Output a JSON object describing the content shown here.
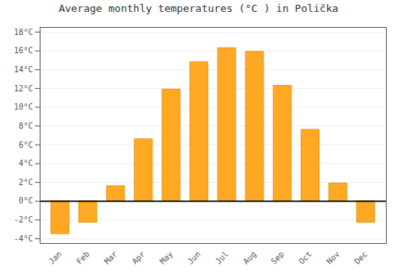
{
  "chart_data": {
    "type": "bar",
    "title": "Average monthly temperatures (°C ) in Polička",
    "categories": [
      "Jan",
      "Feb",
      "Mar",
      "Apr",
      "May",
      "Jun",
      "Jul",
      "Aug",
      "Sep",
      "Oct",
      "Nov",
      "Dec"
    ],
    "values": [
      -3.5,
      -2.3,
      1.6,
      6.6,
      11.9,
      14.8,
      16.3,
      15.9,
      12.3,
      7.6,
      1.9,
      -2.3
    ],
    "color": "#FFA824",
    "ylim": [
      -4.5,
      18.5
    ],
    "yticks": [
      {
        "value": -4,
        "label": "-4°C"
      },
      {
        "value": -2,
        "label": "-2°C"
      },
      {
        "value": 0,
        "label": "0°C"
      },
      {
        "value": 2,
        "label": "2°C"
      },
      {
        "value": 4,
        "label": "4°C"
      },
      {
        "value": 6,
        "label": "6°C"
      },
      {
        "value": 8,
        "label": "8°C"
      },
      {
        "value": 10,
        "label": "10°C"
      },
      {
        "value": 12,
        "label": "12°C"
      },
      {
        "value": 14,
        "label": "14°C"
      },
      {
        "value": 16,
        "label": "16°C"
      },
      {
        "value": 18,
        "label": "18°C"
      }
    ],
    "grid": true
  }
}
